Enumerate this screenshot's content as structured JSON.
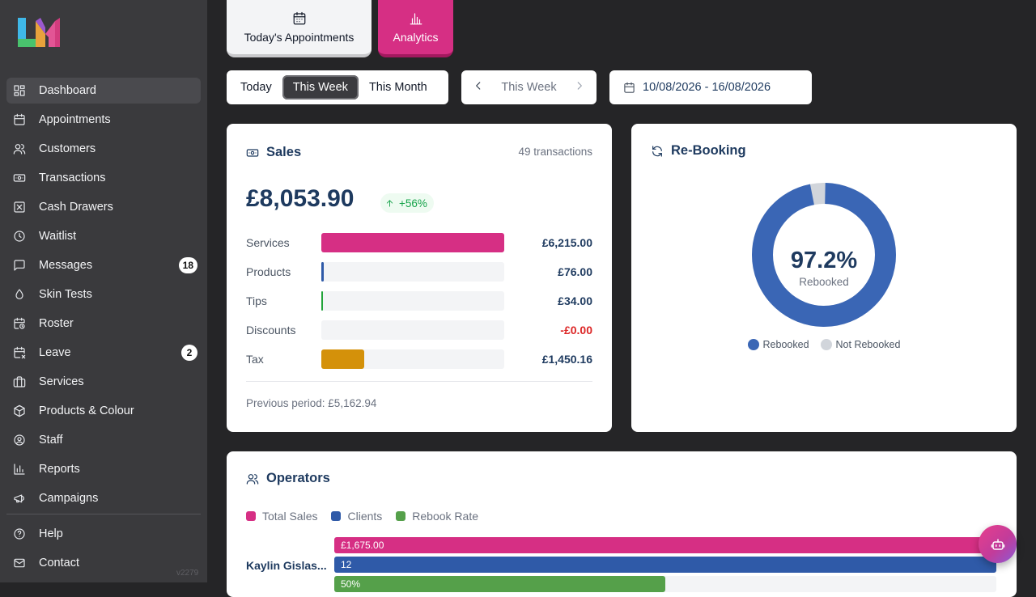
{
  "sidebar": {
    "items": [
      {
        "label": "Dashboard",
        "icon": "dashboard-icon"
      },
      {
        "label": "Appointments",
        "icon": "calendar-icon"
      },
      {
        "label": "Customers",
        "icon": "users-icon"
      },
      {
        "label": "Transactions",
        "icon": "banknote-icon"
      },
      {
        "label": "Cash Drawers",
        "icon": "cash-drawer-icon"
      },
      {
        "label": "Waitlist",
        "icon": "clock-icon"
      },
      {
        "label": "Messages",
        "icon": "message-icon",
        "badge": "18"
      },
      {
        "label": "Skin Tests",
        "icon": "droplet-icon"
      },
      {
        "label": "Roster",
        "icon": "calendar-clock-icon"
      },
      {
        "label": "Leave",
        "icon": "calendar-off-icon",
        "badge": "2"
      },
      {
        "label": "Services",
        "icon": "briefcase-icon"
      },
      {
        "label": "Products & Colour",
        "icon": "package-icon"
      },
      {
        "label": "Staff",
        "icon": "user-circle-icon"
      },
      {
        "label": "Reports",
        "icon": "bar-chart-icon"
      },
      {
        "label": "Campaigns",
        "icon": "megaphone-icon"
      }
    ],
    "footer": [
      {
        "label": "Help",
        "icon": "help-icon"
      },
      {
        "label": "Contact",
        "icon": "mail-icon"
      }
    ],
    "version": "v2279"
  },
  "view_tabs": {
    "today": "Today's Appointments",
    "analytics": "Analytics"
  },
  "filters": {
    "ranges": [
      "Today",
      "This Week",
      "This Month"
    ],
    "selected_range": "This Week",
    "period_label": "This Week",
    "date_range": "10/08/2026 - 16/08/2026"
  },
  "sales": {
    "title": "Sales",
    "transactions": "49 transactions",
    "total": "£8,053.90",
    "change": "+56%",
    "rows": [
      {
        "label": "Services",
        "value": "£6,215.00",
        "fraction": 1.0,
        "color": "#d62f84"
      },
      {
        "label": "Products",
        "value": "£76.00",
        "fraction": 0.012,
        "color": "#2f5aa8"
      },
      {
        "label": "Tips",
        "value": "£34.00",
        "fraction": 0.006,
        "color": "#22a33a"
      },
      {
        "label": "Discounts",
        "value": "-£0.00",
        "fraction": 0,
        "color": "#dc2626"
      },
      {
        "label": "Tax",
        "value": "£1,450.16",
        "fraction": 0.233,
        "color": "#d4910a"
      }
    ],
    "previous": "Previous period: £5,162.94"
  },
  "rebooking": {
    "title": "Re-Booking",
    "percent": "97.2%",
    "percent_value": 97.2,
    "center_label": "Rebooked",
    "legend": [
      {
        "label": "Rebooked",
        "color": "#3a66b5"
      },
      {
        "label": "Not Rebooked",
        "color": "#d1d5db"
      }
    ]
  },
  "operators": {
    "title": "Operators",
    "legend": [
      {
        "label": "Total Sales",
        "color": "#d62f84"
      },
      {
        "label": "Clients",
        "color": "#2f5aa8"
      },
      {
        "label": "Rebook Rate",
        "color": "#55a04a"
      }
    ],
    "rows": [
      {
        "name": "Kaylin Gislas...",
        "sales": "£1,675.00",
        "sales_fraction": 1.0,
        "clients": "12",
        "clients_fraction": 1.0,
        "rebook": "50%",
        "rebook_fraction": 0.5
      }
    ]
  }
}
